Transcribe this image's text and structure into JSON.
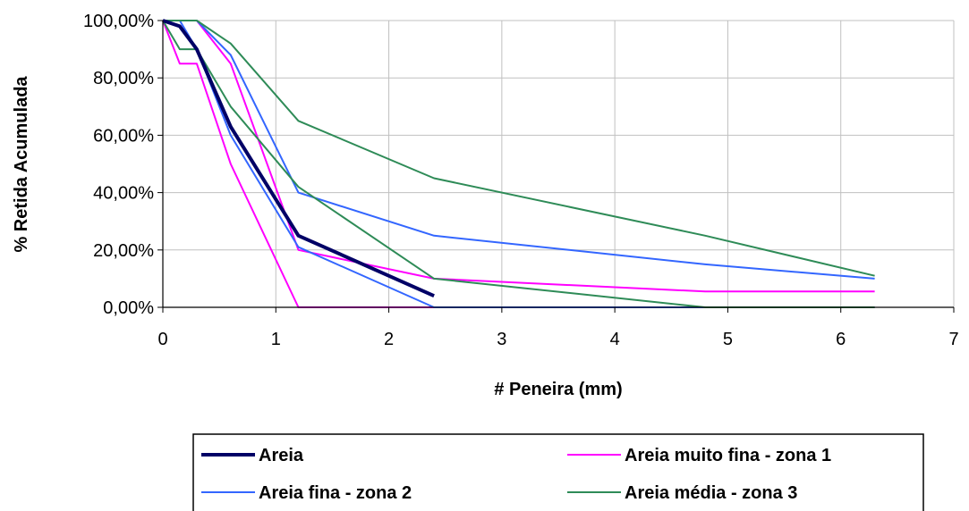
{
  "chart_data": {
    "type": "line",
    "title": "",
    "xlabel": "# Peneira (mm)",
    "ylabel": "% Retida Acumulada",
    "xlim": [
      0,
      7
    ],
    "ylim": [
      0,
      100
    ],
    "x_ticks": [
      "0",
      "1",
      "2",
      "3",
      "4",
      "5",
      "6",
      "7"
    ],
    "y_ticks": [
      "0,00%",
      "20,00%",
      "40,00%",
      "60,00%",
      "80,00%",
      "100,00%"
    ],
    "grid": true,
    "legend_position": "bottom",
    "series": [
      {
        "name": "Areia",
        "color": "#000066",
        "width": 4,
        "points": [
          [
            0,
            100
          ],
          [
            0.15,
            98
          ],
          [
            0.3,
            90
          ],
          [
            0.6,
            63
          ],
          [
            1.2,
            25
          ],
          [
            2.4,
            4
          ]
        ]
      },
      {
        "name": "Areia muito fina - zona 1",
        "color": "#ff00ff",
        "width": 2,
        "points": [
          [
            0,
            100
          ],
          [
            0.15,
            85
          ],
          [
            0.3,
            85
          ],
          [
            0.6,
            50
          ],
          [
            1.2,
            0
          ],
          [
            2.4,
            0
          ],
          [
            4.8,
            0
          ],
          [
            6.3,
            0
          ]
        ]
      },
      {
        "name": "Areia muito fina - zona 1",
        "color": "#ff00ff",
        "width": 2,
        "points": [
          [
            0,
            100
          ],
          [
            0.15,
            100
          ],
          [
            0.3,
            100
          ],
          [
            0.6,
            85
          ],
          [
            1.2,
            20
          ],
          [
            2.4,
            10
          ],
          [
            4.8,
            5.5
          ],
          [
            6.3,
            5.5
          ]
        ]
      },
      {
        "name": "Areia fina - zona 2",
        "color": "#3366ff",
        "width": 2,
        "points": [
          [
            0,
            100
          ],
          [
            0.15,
            100
          ],
          [
            0.3,
            90
          ],
          [
            0.6,
            60
          ],
          [
            1.2,
            21
          ],
          [
            2.4,
            0
          ],
          [
            4.8,
            0
          ],
          [
            6.3,
            0
          ]
        ]
      },
      {
        "name": "Areia fina - zona 2",
        "color": "#3366ff",
        "width": 2,
        "points": [
          [
            0,
            100
          ],
          [
            0.15,
            100
          ],
          [
            0.3,
            100
          ],
          [
            0.6,
            88
          ],
          [
            1.2,
            40
          ],
          [
            2.4,
            25
          ],
          [
            4.8,
            15
          ],
          [
            6.3,
            10
          ]
        ]
      },
      {
        "name": "Areia média - zona 3",
        "color": "#2e8b57",
        "width": 2,
        "points": [
          [
            0,
            100
          ],
          [
            0.15,
            90
          ],
          [
            0.3,
            90
          ],
          [
            0.6,
            70
          ],
          [
            1.2,
            42
          ],
          [
            2.4,
            10
          ],
          [
            4.8,
            0
          ],
          [
            6.3,
            0
          ]
        ]
      },
      {
        "name": "Areia média - zona 3",
        "color": "#2e8b57",
        "width": 2,
        "points": [
          [
            0,
            100
          ],
          [
            0.15,
            100
          ],
          [
            0.3,
            100
          ],
          [
            0.6,
            92
          ],
          [
            1.2,
            65
          ],
          [
            2.4,
            45
          ],
          [
            4.8,
            25
          ],
          [
            6.3,
            11
          ]
        ]
      }
    ],
    "legend": [
      {
        "label": "Areia",
        "color": "#000066",
        "width": 4
      },
      {
        "label": "Areia muito fina - zona 1",
        "color": "#ff00ff",
        "width": 2
      },
      {
        "label": "Areia fina - zona 2",
        "color": "#3366ff",
        "width": 2
      },
      {
        "label": "Areia média - zona 3",
        "color": "#2e8b57",
        "width": 2
      }
    ]
  }
}
